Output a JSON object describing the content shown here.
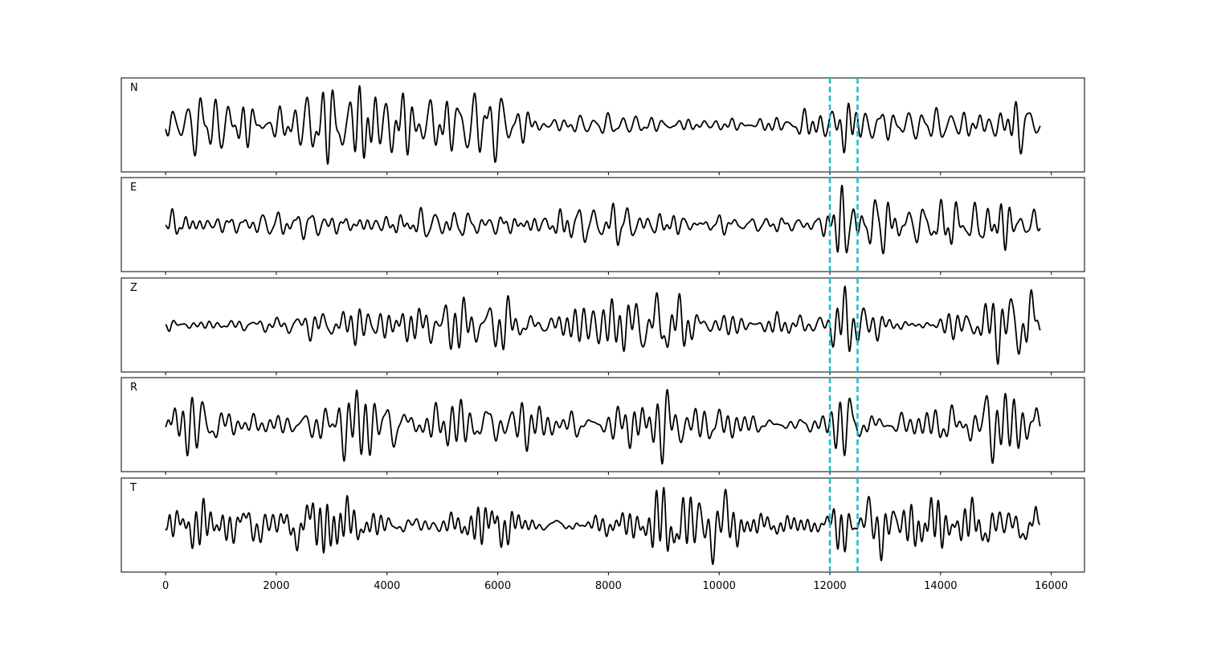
{
  "chart_data": {
    "type": "line",
    "title": "",
    "xlabel": "",
    "ylabel": "",
    "xlim": [
      -800,
      16600
    ],
    "x_ticks": [
      0,
      2000,
      4000,
      6000,
      8000,
      10000,
      12000,
      14000,
      16000
    ],
    "x_tick_labels": [
      "0",
      "2000",
      "4000",
      "6000",
      "8000",
      "10000",
      "12000",
      "14000",
      "16000"
    ],
    "grid": false,
    "legend": "none",
    "n_samples": 15800,
    "colors": {
      "trace": "#000000",
      "marker": "#17becf"
    },
    "markers": [
      {
        "x": 12000,
        "style": "dashed"
      },
      {
        "x": 12500,
        "style": "dashed"
      }
    ],
    "series": [
      {
        "label": "N",
        "ylim": [
          -1.2,
          1.2
        ]
      },
      {
        "label": "E",
        "ylim": [
          -1.2,
          1.2
        ]
      },
      {
        "label": "Z",
        "ylim": [
          -1.2,
          1.2
        ]
      },
      {
        "label": "R",
        "ylim": [
          -1.2,
          1.2
        ]
      },
      {
        "label": "T",
        "ylim": [
          -1.2,
          1.2
        ]
      }
    ]
  }
}
